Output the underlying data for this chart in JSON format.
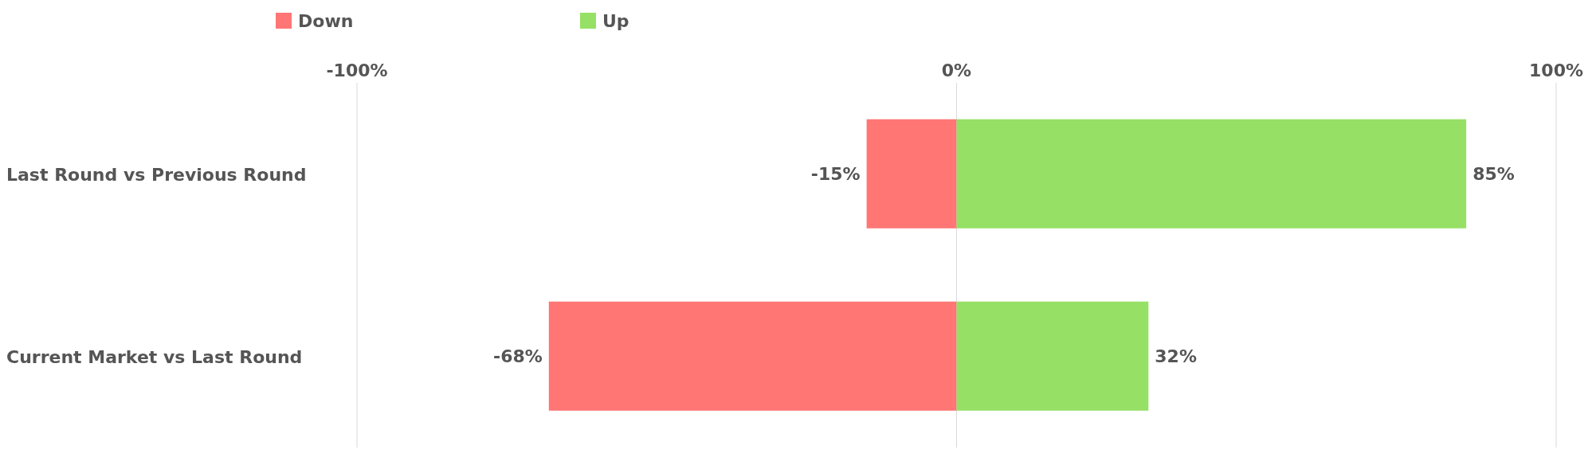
{
  "chart_data": {
    "type": "bar",
    "orientation": "horizontal",
    "stacked": true,
    "categories": [
      "Last Round vs Previous Round",
      "Current Market vs Last Round"
    ],
    "series": [
      {
        "name": "Down",
        "color": "#ff7675",
        "values": [
          -15,
          -68
        ],
        "value_labels": [
          "-15%",
          "-68%"
        ]
      },
      {
        "name": "Up",
        "color": "#96e065",
        "values": [
          85,
          32
        ],
        "value_labels": [
          "85%",
          "32%"
        ]
      }
    ],
    "xlim": [
      -100,
      100
    ],
    "xticks": [
      {
        "value": -100,
        "label": "-100%"
      },
      {
        "value": 0,
        "label": "0%"
      },
      {
        "value": 100,
        "label": "100%"
      }
    ],
    "grid": "x",
    "legend": "top left"
  }
}
